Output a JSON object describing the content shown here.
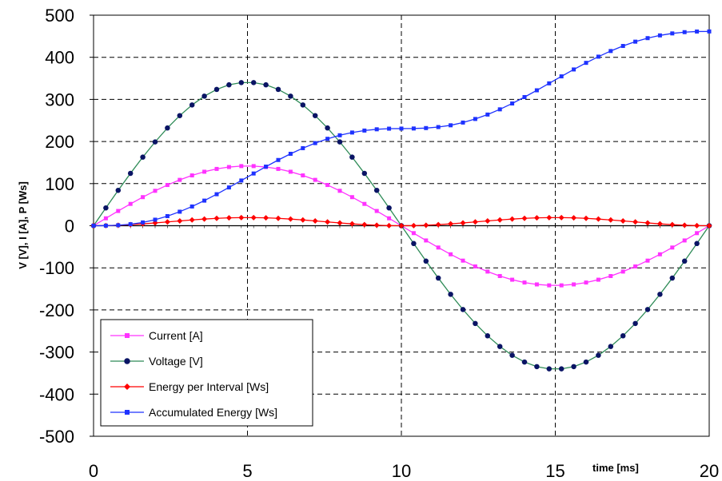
{
  "chart_data": {
    "type": "line",
    "title": "",
    "xlabel": "time [ms]",
    "ylabel": "V [V], I [A], P [Ws]",
    "xlim": [
      0,
      20
    ],
    "ylim": [
      -500,
      500
    ],
    "x_ticks": [
      "0",
      "5",
      "10",
      "15",
      "20"
    ],
    "y_ticks": [
      "500",
      "400",
      "300",
      "200",
      "100",
      "0",
      "-100",
      "-200",
      "-300",
      "-400",
      "-500"
    ],
    "grid": true,
    "legend_position": "bottom-left",
    "x": [
      0,
      0.4,
      0.8,
      1.2,
      1.6,
      2.0,
      2.4,
      2.8,
      3.2,
      3.6,
      4.0,
      4.4,
      4.8,
      5.2,
      5.6,
      6.0,
      6.4,
      6.8,
      7.2,
      7.6,
      8.0,
      8.4,
      8.8,
      9.2,
      9.6,
      10.0,
      10.4,
      10.8,
      11.2,
      11.6,
      12.0,
      12.4,
      12.8,
      13.2,
      13.6,
      14.0,
      14.4,
      14.8,
      15.2,
      15.6,
      16.0,
      16.4,
      16.8,
      17.2,
      17.6,
      18.0,
      18.4,
      18.8,
      19.2,
      19.6,
      20.0
    ],
    "series": [
      {
        "name": "Current [A]",
        "color": "#ff33ff",
        "marker": "square",
        "values": [
          0.0,
          17.6,
          35.0,
          51.8,
          67.9,
          82.9,
          96.7,
          108.9,
          119.5,
          128.2,
          134.9,
          139.4,
          141.6,
          141.6,
          139.4,
          134.9,
          128.2,
          119.5,
          108.9,
          96.7,
          82.9,
          67.9,
          51.8,
          35.0,
          17.6,
          0.0,
          -17.6,
          -35.0,
          -51.8,
          -67.9,
          -82.9,
          -96.7,
          -108.9,
          -119.5,
          -128.2,
          -134.9,
          -139.4,
          -141.6,
          -141.6,
          -139.4,
          -134.9,
          -128.2,
          -119.5,
          -108.9,
          -96.7,
          -82.9,
          -67.9,
          -51.8,
          -35.0,
          -17.6,
          0.0
        ]
      },
      {
        "name": "Voltage [V]",
        "color": "#2e8b57",
        "marker_color": "#0a1464",
        "marker": "circle",
        "values": [
          0.0,
          42.3,
          84.0,
          124.4,
          162.9,
          199.0,
          232.1,
          261.5,
          286.8,
          307.7,
          323.7,
          334.6,
          339.9,
          339.9,
          334.6,
          323.7,
          307.7,
          286.8,
          261.5,
          232.1,
          199.0,
          162.9,
          124.4,
          84.0,
          42.3,
          0.0,
          -42.3,
          -84.0,
          -124.4,
          -162.9,
          -199.0,
          -232.1,
          -261.5,
          -286.8,
          -307.7,
          -323.7,
          -334.6,
          -339.9,
          -339.9,
          -334.6,
          -323.7,
          -307.7,
          -286.8,
          -261.5,
          -232.1,
          -199.0,
          -162.9,
          -124.4,
          -84.0,
          -42.3,
          0.0
        ]
      },
      {
        "name": "Energy per Interval [Ws]",
        "color": "#ff0000",
        "marker": "diamond",
        "values": [
          0.0,
          0.3,
          1.2,
          2.6,
          4.4,
          6.6,
          9.0,
          11.4,
          13.7,
          15.8,
          17.5,
          18.7,
          19.2,
          19.2,
          18.7,
          17.5,
          15.8,
          13.7,
          11.4,
          9.0,
          6.6,
          4.4,
          2.6,
          1.2,
          0.3,
          0.0,
          0.3,
          1.2,
          2.6,
          4.4,
          6.6,
          9.0,
          11.4,
          13.7,
          15.8,
          17.5,
          18.7,
          19.2,
          19.2,
          18.7,
          17.5,
          15.8,
          13.7,
          11.4,
          9.0,
          6.6,
          4.4,
          2.6,
          1.2,
          0.3,
          0.0
        ]
      },
      {
        "name": "Accumulated Energy [Ws]",
        "color": "#1e32ff",
        "marker": "square",
        "values": [
          0.0,
          0.2,
          1.2,
          3.6,
          7.8,
          14.3,
          22.8,
          33.3,
          45.7,
          59.6,
          74.8,
          90.9,
          107.4,
          124.0,
          140.4,
          156.1,
          170.8,
          184.2,
          196.2,
          206.4,
          214.8,
          221.3,
          226.0,
          229.0,
          230.5,
          230.7,
          230.9,
          231.9,
          234.3,
          238.5,
          245.0,
          253.5,
          264.0,
          276.4,
          290.3,
          305.5,
          321.6,
          338.1,
          354.7,
          371.1,
          386.8,
          401.5,
          414.9,
          426.9,
          437.1,
          445.5,
          452.0,
          456.7,
          459.7,
          461.2,
          461.4
        ]
      }
    ]
  }
}
